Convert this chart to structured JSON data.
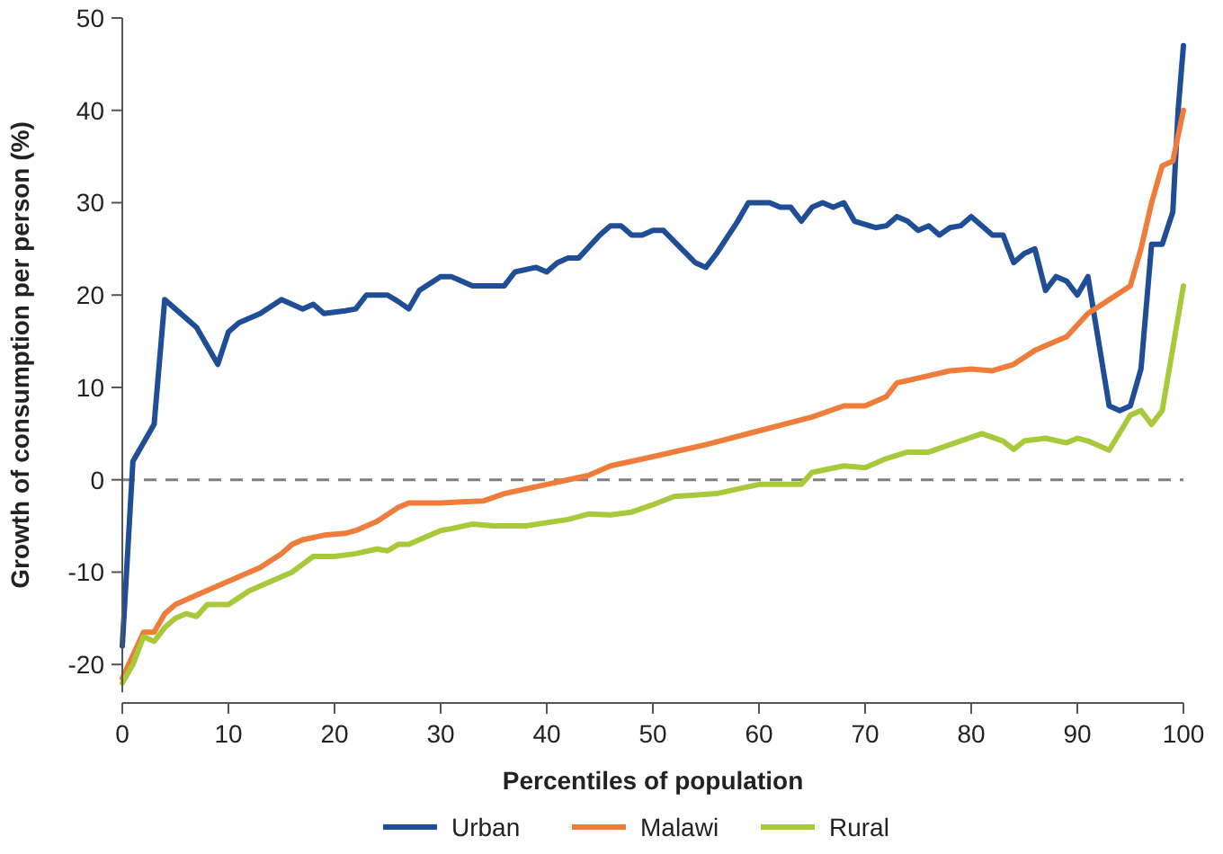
{
  "chart_data": {
    "type": "line",
    "xlabel": "Percentiles of population",
    "ylabel": "Growth of consumption per person (%)",
    "xlim": [
      0,
      100
    ],
    "xticks": [
      0,
      10,
      20,
      30,
      40,
      50,
      60,
      70,
      80,
      90,
      100
    ],
    "ylim": [
      -23,
      50
    ],
    "yticks": [
      -20,
      -10,
      0,
      10,
      20,
      30,
      40,
      50
    ],
    "grid": false,
    "legend": "bottom",
    "line_style": "solid",
    "marker": "none",
    "ref_lines": [
      {
        "axis": "y",
        "value": 0,
        "color": "#808080",
        "line_style": "dashed"
      }
    ],
    "series": [
      {
        "name": "Urban",
        "color": "#1f4e96",
        "x": [
          0,
          1,
          2,
          3,
          4,
          5,
          7,
          9,
          10,
          11,
          13,
          15,
          16,
          17,
          18,
          19,
          21,
          22,
          23,
          25,
          26,
          27,
          28,
          30,
          31,
          33,
          35,
          36,
          37,
          39,
          40,
          41,
          42,
          43,
          45,
          46,
          47,
          48,
          49,
          50,
          51,
          54,
          55,
          56,
          58,
          59,
          61,
          62,
          63,
          64,
          65,
          66,
          67,
          68,
          69,
          71,
          72,
          73,
          74,
          75,
          76,
          77,
          78,
          79,
          80,
          82,
          83,
          84,
          85,
          86,
          87,
          88,
          89,
          90,
          91,
          93,
          94,
          95,
          96,
          97,
          98,
          99,
          99.5,
          100
        ],
        "values": [
          -18,
          2,
          4,
          6,
          19.5,
          18.5,
          16.5,
          12.5,
          16,
          17,
          18,
          19.5,
          19,
          18.5,
          19,
          18,
          18.3,
          18.5,
          20,
          20,
          19.3,
          18.5,
          20.5,
          22,
          22,
          21,
          21,
          21,
          22.5,
          23,
          22.5,
          23.5,
          24,
          24,
          26.5,
          27.5,
          27.5,
          26.5,
          26.5,
          27,
          27,
          23.5,
          23,
          24.5,
          28,
          30,
          30,
          29.5,
          29.5,
          28,
          29.5,
          30,
          29.5,
          30,
          28,
          27.3,
          27.5,
          28.5,
          28,
          27,
          27.5,
          26.5,
          27.3,
          27.5,
          28.5,
          26.5,
          26.5,
          23.5,
          24.5,
          25,
          20.5,
          22,
          21.5,
          20,
          22,
          8,
          7.5,
          8,
          12,
          25.5,
          25.5,
          29,
          40,
          47
        ]
      },
      {
        "name": "Malawi",
        "color": "#ee7d3b",
        "x": [
          0,
          1,
          2,
          3,
          4,
          5,
          7,
          9,
          11,
          13,
          15,
          16,
          17,
          19,
          21,
          22,
          24,
          26,
          27,
          30,
          34,
          36,
          38,
          40,
          42,
          44,
          46,
          50,
          55,
          60,
          65,
          68,
          70,
          72,
          73,
          75,
          78,
          80,
          82,
          84,
          86,
          88,
          89,
          91,
          95,
          96,
          97,
          98,
          99,
          100
        ],
        "values": [
          -21.5,
          -19,
          -16.5,
          -16.5,
          -14.5,
          -13.5,
          -12.5,
          -11.5,
          -10.5,
          -9.5,
          -8,
          -7,
          -6.5,
          -6,
          -5.8,
          -5.5,
          -4.5,
          -3,
          -2.5,
          -2.5,
          -2.3,
          -1.5,
          -1,
          -0.5,
          0,
          0.5,
          1.5,
          2.5,
          3.8,
          5.3,
          6.8,
          8,
          8,
          9,
          10.5,
          11,
          11.8,
          12,
          11.8,
          12.5,
          14,
          15,
          15.5,
          18,
          21,
          25,
          30,
          34,
          34.5,
          40
        ]
      },
      {
        "name": "Rural",
        "color": "#a8c93a",
        "x": [
          0,
          1,
          2,
          3,
          4,
          5,
          6,
          7,
          8,
          10,
          12,
          14,
          16,
          18,
          20,
          22,
          24,
          25,
          26,
          27,
          30,
          31,
          33,
          35,
          38,
          42,
          44,
          46,
          48,
          50,
          52,
          56,
          60,
          63,
          64,
          65,
          68,
          70,
          72,
          74,
          76,
          78,
          81,
          83,
          84,
          85,
          87,
          89,
          90,
          91,
          93,
          95,
          96,
          97,
          98,
          100
        ],
        "values": [
          -22,
          -20,
          -17,
          -17.5,
          -16,
          -15,
          -14.5,
          -14.8,
          -13.5,
          -13.5,
          -12,
          -11,
          -10,
          -8.3,
          -8.3,
          -8,
          -7.5,
          -7.7,
          -7,
          -7,
          -5.5,
          -5.3,
          -4.8,
          -5,
          -5,
          -4.3,
          -3.7,
          -3.8,
          -3.5,
          -2.7,
          -1.8,
          -1.5,
          -0.5,
          -0.5,
          -0.5,
          0.8,
          1.5,
          1.3,
          2.3,
          3,
          3,
          3.8,
          5,
          4.2,
          3.3,
          4.2,
          4.5,
          4,
          4.5,
          4.2,
          3.2,
          7,
          7.5,
          6,
          7.5,
          21
        ]
      }
    ]
  }
}
